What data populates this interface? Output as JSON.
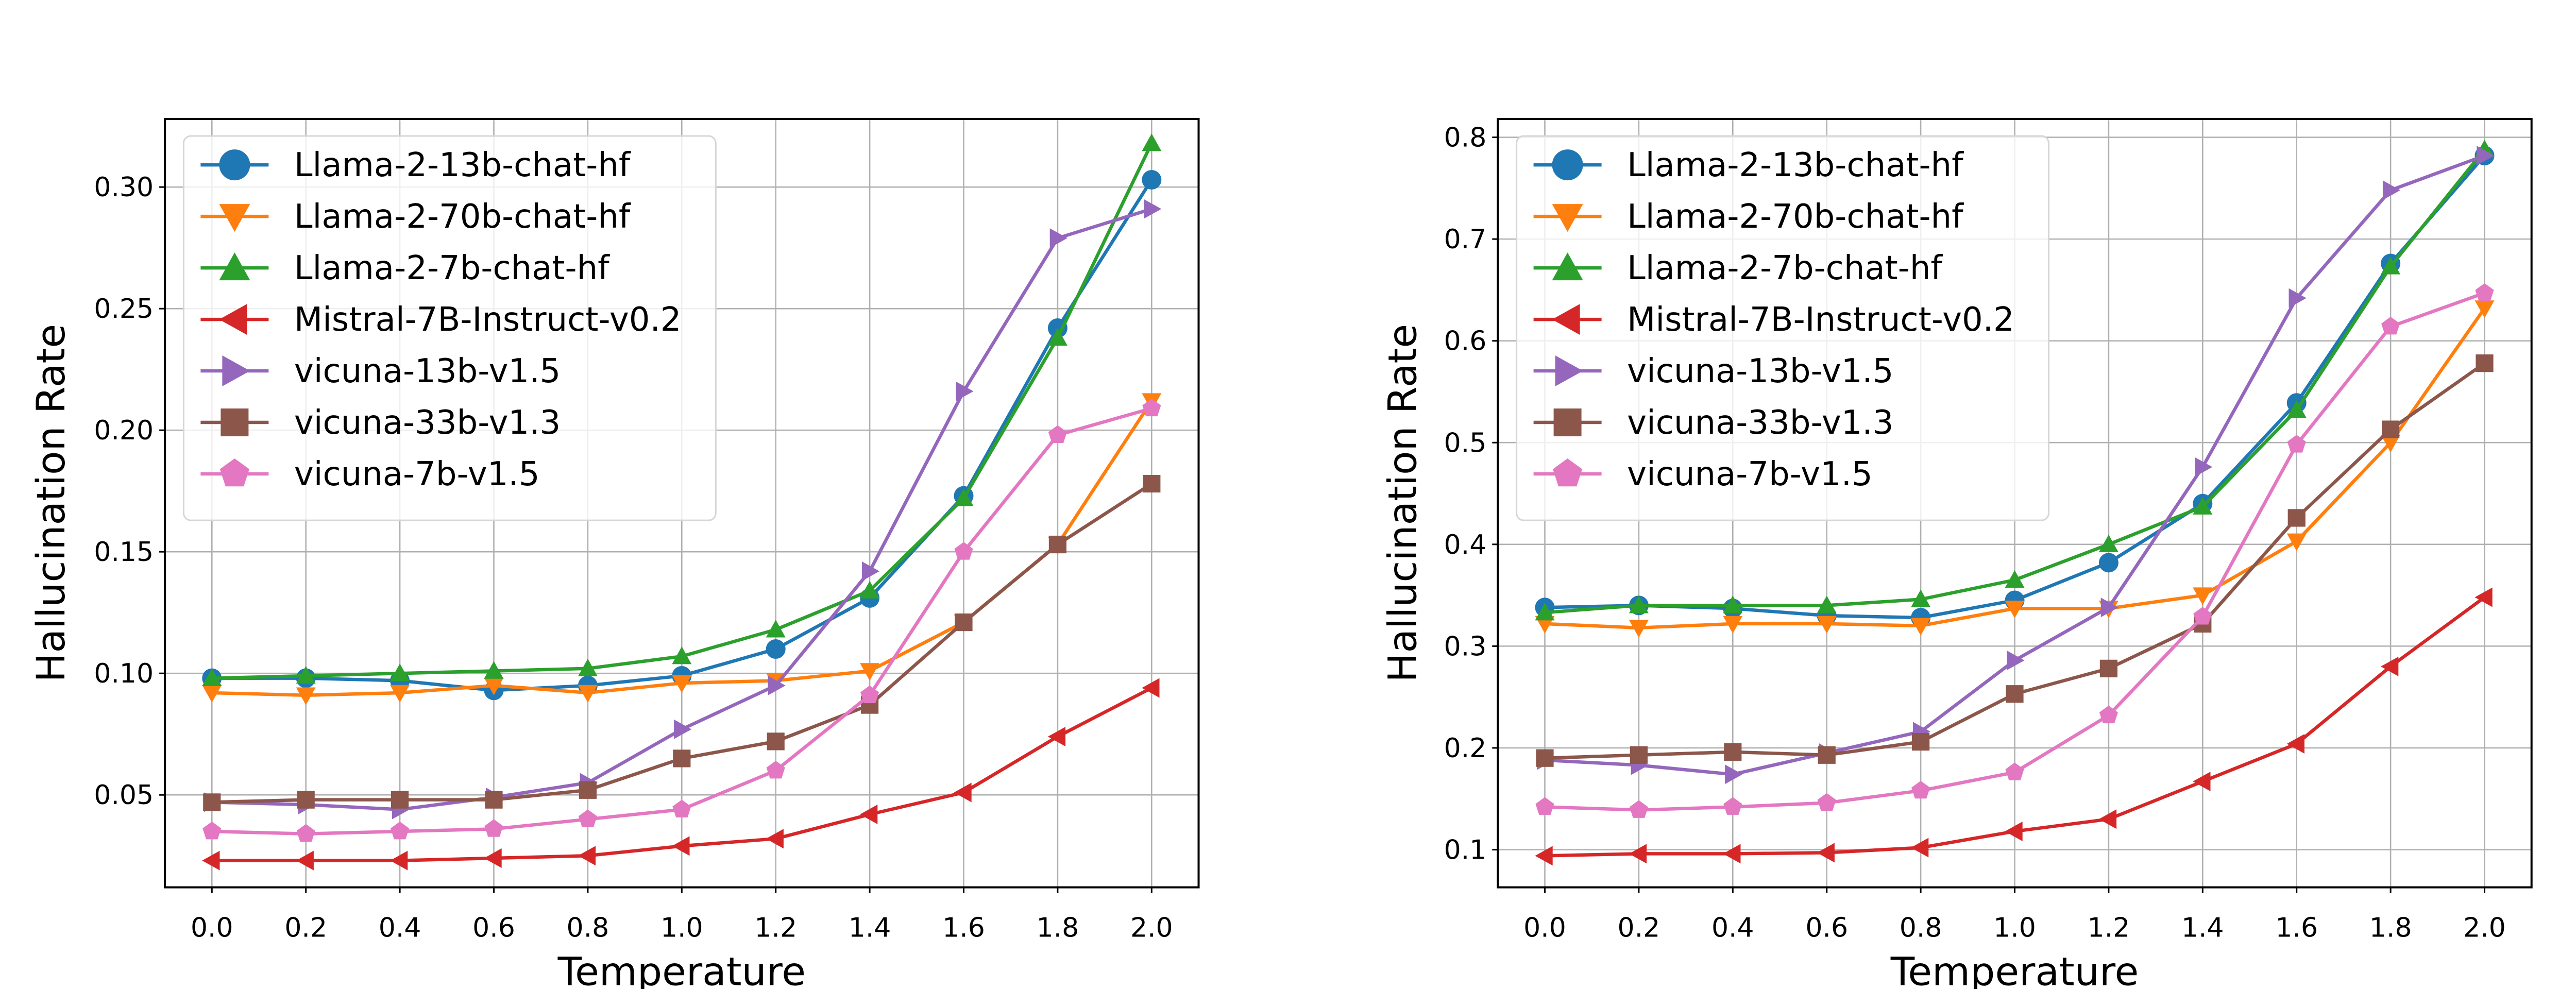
{
  "chart_data": [
    {
      "type": "line",
      "title": "",
      "xlabel": "Temperature",
      "ylabel": "Hallucination Rate",
      "x": [
        0.0,
        0.2,
        0.4,
        0.6,
        0.8,
        1.0,
        1.2,
        1.4,
        1.6,
        1.8,
        2.0
      ],
      "xlim": [
        -0.1,
        2.1
      ],
      "ylim": [
        0.012,
        0.328
      ],
      "xticks": [
        "0.0",
        "0.2",
        "0.4",
        "0.6",
        "0.8",
        "1.0",
        "1.2",
        "1.4",
        "1.6",
        "1.8",
        "2.0"
      ],
      "yticks": [
        "0.05",
        "0.10",
        "0.15",
        "0.20",
        "0.25",
        "0.30"
      ],
      "grid": true,
      "legend_position": "top-left",
      "series": [
        {
          "name": "Llama-2-13b-chat-hf",
          "color": "#1f77b4",
          "marker": "circle",
          "values": [
            0.098,
            0.098,
            0.097,
            0.093,
            0.095,
            0.099,
            0.11,
            0.131,
            0.173,
            0.242,
            0.303
          ]
        },
        {
          "name": "Llama-2-70b-chat-hf",
          "color": "#ff7f0e",
          "marker": "triangle-down",
          "values": [
            0.092,
            0.091,
            0.092,
            0.095,
            0.092,
            0.096,
            0.097,
            0.101,
            0.121,
            0.153,
            0.212
          ]
        },
        {
          "name": "Llama-2-7b-chat-hf",
          "color": "#2ca02c",
          "marker": "triangle-up",
          "values": [
            0.098,
            0.099,
            0.1,
            0.101,
            0.102,
            0.107,
            0.118,
            0.134,
            0.172,
            0.238,
            0.318
          ]
        },
        {
          "name": "Mistral-7B-Instruct-v0.2",
          "color": "#d62728",
          "marker": "triangle-left",
          "values": [
            0.023,
            0.023,
            0.023,
            0.024,
            0.025,
            0.029,
            0.032,
            0.042,
            0.051,
            0.074,
            0.094
          ]
        },
        {
          "name": "vicuna-13b-v1.5",
          "color": "#9467bd",
          "marker": "triangle-right",
          "values": [
            0.047,
            0.046,
            0.044,
            0.049,
            0.055,
            0.077,
            0.095,
            0.142,
            0.216,
            0.279,
            0.291
          ]
        },
        {
          "name": "vicuna-33b-v1.3",
          "color": "#8c564b",
          "marker": "square",
          "values": [
            0.047,
            0.048,
            0.048,
            0.048,
            0.052,
            0.065,
            0.072,
            0.087,
            0.121,
            0.153,
            0.178
          ]
        },
        {
          "name": "vicuna-7b-v1.5",
          "color": "#e377c2",
          "marker": "pentagon",
          "values": [
            0.035,
            0.034,
            0.035,
            0.036,
            0.04,
            0.044,
            0.06,
            0.091,
            0.15,
            0.198,
            0.209
          ]
        }
      ]
    },
    {
      "type": "line",
      "title": "",
      "xlabel": "Temperature",
      "ylabel": "Hallucination Rate",
      "x": [
        0.0,
        0.2,
        0.4,
        0.6,
        0.8,
        1.0,
        1.2,
        1.4,
        1.6,
        1.8,
        2.0
      ],
      "xlim": [
        -0.1,
        2.1
      ],
      "ylim": [
        0.063,
        0.818
      ],
      "xticks": [
        "0.0",
        "0.2",
        "0.4",
        "0.6",
        "0.8",
        "1.0",
        "1.2",
        "1.4",
        "1.6",
        "1.8",
        "2.0"
      ],
      "yticks": [
        "0.1",
        "0.2",
        "0.3",
        "0.4",
        "0.5",
        "0.6",
        "0.7",
        "0.8"
      ],
      "grid": true,
      "legend_position": "top-left",
      "series": [
        {
          "name": "Llama-2-13b-chat-hf",
          "color": "#1f77b4",
          "marker": "circle",
          "values": [
            0.338,
            0.34,
            0.337,
            0.33,
            0.328,
            0.345,
            0.382,
            0.44,
            0.539,
            0.676,
            0.782
          ]
        },
        {
          "name": "Llama-2-70b-chat-hf",
          "color": "#ff7f0e",
          "marker": "triangle-down",
          "values": [
            0.322,
            0.318,
            0.322,
            0.322,
            0.32,
            0.337,
            0.337,
            0.35,
            0.403,
            0.5,
            0.632
          ]
        },
        {
          "name": "Llama-2-7b-chat-hf",
          "color": "#2ca02c",
          "marker": "triangle-up",
          "values": [
            0.333,
            0.34,
            0.34,
            0.34,
            0.346,
            0.365,
            0.4,
            0.437,
            0.532,
            0.673,
            0.788
          ]
        },
        {
          "name": "Mistral-7B-Instruct-v0.2",
          "color": "#d62728",
          "marker": "triangle-left",
          "values": [
            0.094,
            0.096,
            0.096,
            0.097,
            0.102,
            0.118,
            0.13,
            0.167,
            0.204,
            0.28,
            0.348
          ]
        },
        {
          "name": "vicuna-13b-v1.5",
          "color": "#9467bd",
          "marker": "triangle-right",
          "values": [
            0.188,
            0.183,
            0.174,
            0.195,
            0.216,
            0.286,
            0.338,
            0.476,
            0.642,
            0.748,
            0.782
          ]
        },
        {
          "name": "vicuna-33b-v1.3",
          "color": "#8c564b",
          "marker": "square",
          "values": [
            0.19,
            0.193,
            0.196,
            0.193,
            0.206,
            0.253,
            0.278,
            0.322,
            0.426,
            0.513,
            0.578
          ]
        },
        {
          "name": "vicuna-7b-v1.5",
          "color": "#e377c2",
          "marker": "pentagon",
          "values": [
            0.142,
            0.139,
            0.142,
            0.146,
            0.158,
            0.176,
            0.232,
            0.329,
            0.498,
            0.614,
            0.647
          ]
        }
      ]
    }
  ]
}
